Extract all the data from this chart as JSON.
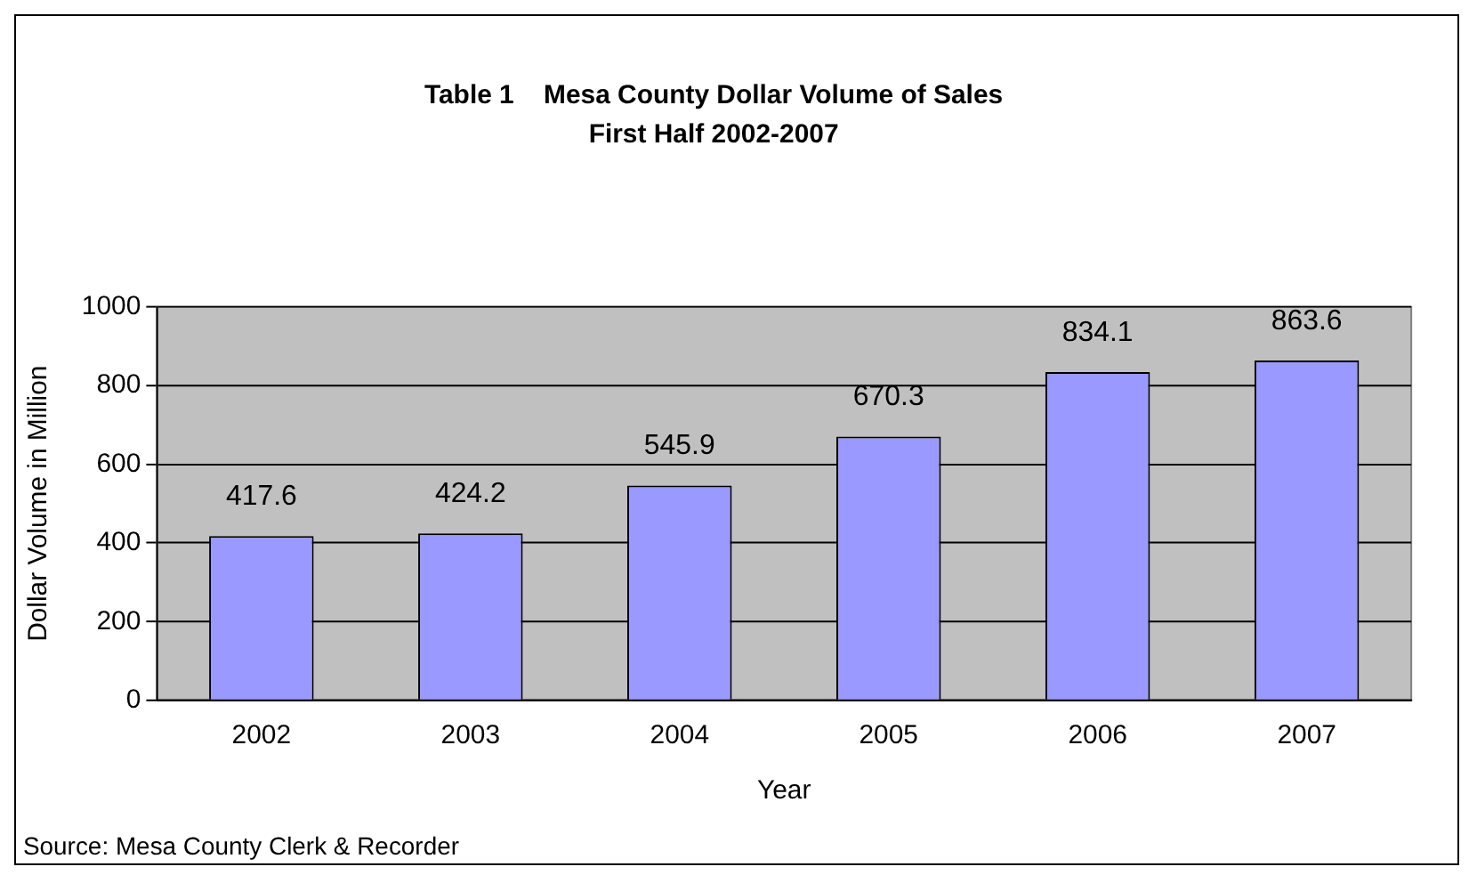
{
  "chart_data": {
    "type": "bar",
    "title": "Table 1    Mesa County Dollar Volume of Sales",
    "subtitle": "First Half 2002-2007",
    "xlabel": "Year",
    "ylabel": "Dollar Volume in Million",
    "categories": [
      "2002",
      "2003",
      "2004",
      "2005",
      "2006",
      "2007"
    ],
    "values": [
      417.6,
      424.2,
      545.9,
      670.3,
      834.1,
      863.6
    ],
    "color": "#9999ff",
    "ylim": [
      0,
      1000
    ],
    "yticks": [
      0,
      200,
      400,
      600,
      800,
      1000
    ],
    "grid": "y",
    "data_labels": true,
    "annotations": [
      "Source: Mesa County Clerk & Recorder"
    ]
  }
}
